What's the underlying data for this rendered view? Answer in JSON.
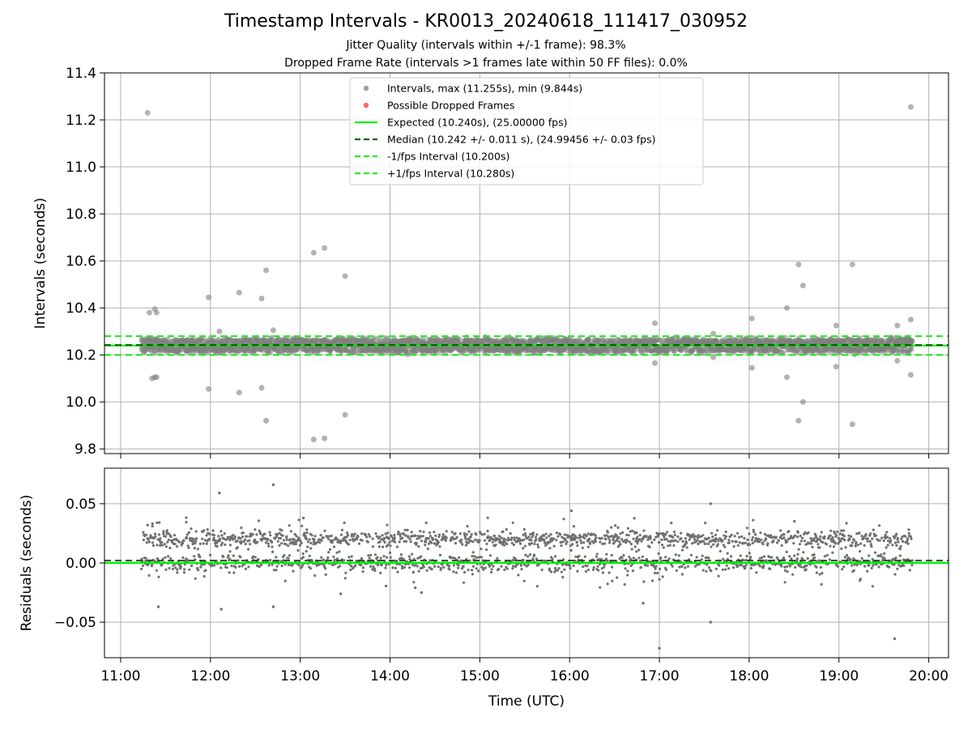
{
  "header": {
    "title": "Timestamp Intervals - KR0013_20240618_111417_030952",
    "subtitle_1": "Jitter Quality (intervals within +/-1 frame): 98.3%",
    "subtitle_2": "Dropped Frame Rate (intervals >1 frames late within 50 FF files): 0.0%"
  },
  "colors": {
    "points": "#808080",
    "dropped": "#ff6666",
    "expected": "#00ee00",
    "median": "#006400",
    "bounds": "#22ee22",
    "grid": "#b0b0b0"
  },
  "chart_data": [
    {
      "type": "scatter",
      "ylabel": "Intervals (seconds)",
      "ylim": [
        9.78,
        11.4
      ],
      "yticks": [
        9.8,
        10.0,
        10.2,
        10.4,
        10.6,
        10.8,
        11.0,
        11.2,
        11.4
      ],
      "ytick_labels": [
        "9.8",
        "10.0",
        "10.2",
        "10.4",
        "10.6",
        "10.8",
        "11.0",
        "11.2",
        "11.4"
      ],
      "xlim_hours": [
        10.82,
        20.22
      ],
      "grid": true,
      "legend_position": "top-center",
      "legend": [
        {
          "label": "Intervals, max (11.255s), min (9.844s)",
          "kind": "marker",
          "color": "#a0a0a0"
        },
        {
          "label": "Possible Dropped Frames",
          "kind": "marker",
          "color": "#ff6666"
        },
        {
          "label": "Expected (10.240s), (25.00000 fps)",
          "kind": "solid",
          "color": "#00ee00"
        },
        {
          "label": "Median (10.242 +/- 0.011 s), (24.99456 +/- 0.03 fps)",
          "kind": "dashed",
          "color": "#006400"
        },
        {
          "label": "-1/fps Interval (10.200s)",
          "kind": "dashed",
          "color": "#22ee22"
        },
        {
          "label": "+1/fps Interval (10.280s)",
          "kind": "dashed",
          "color": "#22ee22"
        }
      ],
      "reference_lines": {
        "expected": 10.24,
        "median": 10.242,
        "lower": 10.2,
        "upper": 10.28
      },
      "data_span_hours": [
        11.23,
        19.82
      ],
      "band_values": [
        10.22,
        10.24,
        10.26
      ],
      "outliers": [
        [
          11.3,
          11.23
        ],
        [
          11.32,
          10.38
        ],
        [
          11.38,
          10.395
        ],
        [
          11.4,
          10.38
        ],
        [
          11.35,
          10.1
        ],
        [
          11.38,
          10.105
        ],
        [
          11.4,
          10.105
        ],
        [
          11.98,
          10.445
        ],
        [
          11.98,
          10.055
        ],
        [
          12.1,
          10.3
        ],
        [
          12.32,
          10.465
        ],
        [
          12.32,
          10.04
        ],
        [
          12.57,
          10.44
        ],
        [
          12.57,
          10.06
        ],
        [
          12.62,
          10.56
        ],
        [
          12.62,
          9.92
        ],
        [
          12.7,
          10.305
        ],
        [
          13.15,
          10.635
        ],
        [
          13.15,
          9.84
        ],
        [
          13.27,
          10.655
        ],
        [
          13.27,
          9.845
        ],
        [
          13.5,
          10.535
        ],
        [
          13.5,
          9.945
        ],
        [
          16.95,
          10.335
        ],
        [
          16.95,
          10.165
        ],
        [
          17.6,
          10.29
        ],
        [
          17.6,
          10.19
        ],
        [
          18.03,
          10.355
        ],
        [
          18.03,
          10.145
        ],
        [
          18.42,
          10.4
        ],
        [
          18.42,
          10.105
        ],
        [
          18.55,
          10.585
        ],
        [
          18.55,
          9.92
        ],
        [
          18.6,
          10.495
        ],
        [
          18.6,
          10.0
        ],
        [
          18.97,
          10.325
        ],
        [
          18.97,
          10.15
        ],
        [
          19.15,
          10.585
        ],
        [
          19.15,
          9.905
        ],
        [
          19.65,
          10.325
        ],
        [
          19.65,
          10.175
        ],
        [
          19.8,
          11.255
        ],
        [
          19.8,
          10.35
        ],
        [
          19.8,
          10.115
        ]
      ]
    },
    {
      "type": "scatter",
      "xlabel": "Time (UTC)",
      "ylabel": "Residuals (seconds)",
      "ylim": [
        -0.08,
        0.08
      ],
      "yticks": [
        -0.05,
        0.0,
        0.05
      ],
      "ytick_labels": [
        "−0.05",
        "0.00",
        "0.05"
      ],
      "xlim_hours": [
        10.82,
        20.22
      ],
      "xticks_hours": [
        11,
        12,
        13,
        14,
        15,
        16,
        17,
        18,
        19,
        20
      ],
      "xtick_labels": [
        "11:00",
        "12:00",
        "13:00",
        "14:00",
        "15:00",
        "16:00",
        "17:00",
        "18:00",
        "19:00",
        "20:00"
      ],
      "grid": true,
      "reference_lines": {
        "expected": 0.0,
        "median": 0.002
      },
      "bands": [
        0.02,
        0.0
      ],
      "outliers": [
        [
          12.1,
          0.059
        ],
        [
          12.7,
          0.066
        ],
        [
          11.42,
          -0.037
        ],
        [
          12.12,
          -0.039
        ],
        [
          12.7,
          -0.037
        ],
        [
          16.82,
          -0.034
        ],
        [
          17.0,
          -0.072
        ],
        [
          17.57,
          -0.05
        ],
        [
          17.57,
          0.05
        ],
        [
          16.02,
          0.044
        ],
        [
          19.62,
          -0.064
        ],
        [
          11.3,
          0.032
        ],
        [
          13.45,
          -0.026
        ],
        [
          14.35,
          -0.025
        ]
      ]
    }
  ]
}
